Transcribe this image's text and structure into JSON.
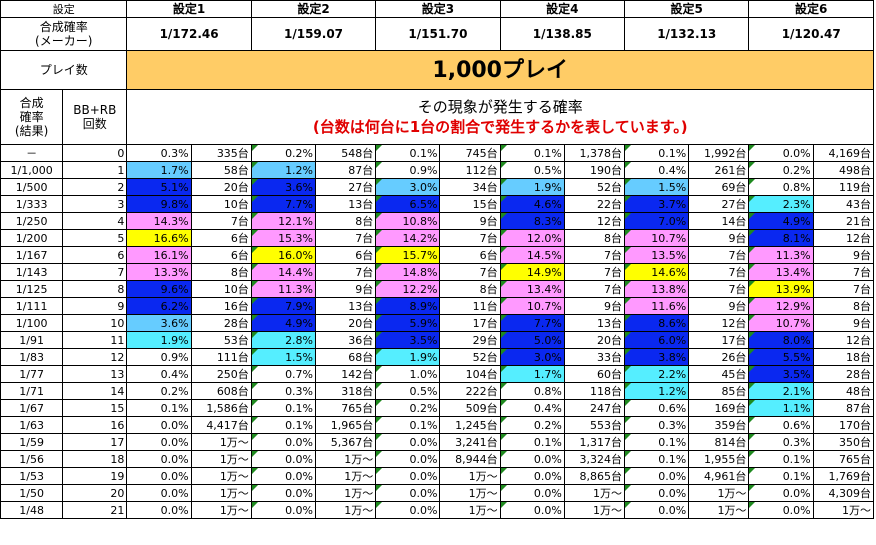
{
  "header": {
    "setting_label": "設定",
    "settings": [
      "設定1",
      "設定2",
      "設定3",
      "設定4",
      "設定5",
      "設定6"
    ],
    "odds_label_line1": "合成確率",
    "odds_label_line2": "(メーカー)",
    "odds": [
      "1/172.46",
      "1/159.07",
      "1/151.70",
      "1/138.85",
      "1/132.13",
      "1/120.47"
    ],
    "plays_label": "プレイ数",
    "plays_value": "1,000プレイ",
    "col_odds_result": [
      "合成",
      "確率",
      "(結果)"
    ],
    "col_bbrb": [
      "BB+RB",
      "回数"
    ],
    "phenomenon_title": "その現象が発生する確率",
    "phenomenon_note": "(台数は何台に1台の割合で発生するかを表しています。)"
  },
  "colors": {
    "blue": "#0a28f0",
    "light_blue": "#66ccff",
    "cyan": "#55eeff",
    "pink": "#ff99ff",
    "yellow": "#ffff00",
    "banner": "#ffcc66",
    "note_red": "#e00000"
  },
  "rows": [
    {
      "odds": "－",
      "n": "0",
      "cells": [
        [
          "0.3%",
          "335台",
          ""
        ],
        [
          "0.2%",
          "548台",
          ""
        ],
        [
          "0.1%",
          "745台",
          ""
        ],
        [
          "0.1%",
          "1,378台",
          ""
        ],
        [
          "0.1%",
          "1,992台",
          ""
        ],
        [
          "0.0%",
          "4,169台",
          ""
        ]
      ]
    },
    {
      "odds": "1/1,000",
      "n": "1",
      "cells": [
        [
          "1.7%",
          "58台",
          "light_blue"
        ],
        [
          "1.2%",
          "87台",
          "light_blue"
        ],
        [
          "0.9%",
          "112台",
          ""
        ],
        [
          "0.5%",
          "190台",
          ""
        ],
        [
          "0.4%",
          "261台",
          ""
        ],
        [
          "0.2%",
          "498台",
          ""
        ]
      ]
    },
    {
      "odds": "1/500",
      "n": "2",
      "cells": [
        [
          "5.1%",
          "20台",
          "blue"
        ],
        [
          "3.6%",
          "27台",
          "blue"
        ],
        [
          "3.0%",
          "34台",
          "light_blue"
        ],
        [
          "1.9%",
          "52台",
          "light_blue"
        ],
        [
          "1.5%",
          "69台",
          "light_blue"
        ],
        [
          "0.8%",
          "119台",
          ""
        ]
      ]
    },
    {
      "odds": "1/333",
      "n": "3",
      "cells": [
        [
          "9.8%",
          "10台",
          "blue"
        ],
        [
          "7.7%",
          "13台",
          "blue"
        ],
        [
          "6.5%",
          "15台",
          "blue"
        ],
        [
          "4.6%",
          "22台",
          "blue"
        ],
        [
          "3.7%",
          "27台",
          "blue"
        ],
        [
          "2.3%",
          "43台",
          "cyan"
        ]
      ]
    },
    {
      "odds": "1/250",
      "n": "4",
      "cells": [
        [
          "14.3%",
          "7台",
          "pink"
        ],
        [
          "12.1%",
          "8台",
          "pink"
        ],
        [
          "10.8%",
          "9台",
          "pink"
        ],
        [
          "8.3%",
          "12台",
          "blue"
        ],
        [
          "7.0%",
          "14台",
          "blue"
        ],
        [
          "4.9%",
          "21台",
          "blue"
        ]
      ]
    },
    {
      "odds": "1/200",
      "n": "5",
      "cells": [
        [
          "16.6%",
          "6台",
          "yellow"
        ],
        [
          "15.3%",
          "7台",
          "pink"
        ],
        [
          "14.2%",
          "7台",
          "pink"
        ],
        [
          "12.0%",
          "8台",
          "pink"
        ],
        [
          "10.7%",
          "9台",
          "pink"
        ],
        [
          "8.1%",
          "12台",
          "blue"
        ]
      ]
    },
    {
      "odds": "1/167",
      "n": "6",
      "cells": [
        [
          "16.1%",
          "6台",
          "pink"
        ],
        [
          "16.0%",
          "6台",
          "yellow"
        ],
        [
          "15.7%",
          "6台",
          "yellow"
        ],
        [
          "14.5%",
          "7台",
          "pink"
        ],
        [
          "13.5%",
          "7台",
          "pink"
        ],
        [
          "11.3%",
          "9台",
          "pink"
        ]
      ]
    },
    {
      "odds": "1/143",
      "n": "7",
      "cells": [
        [
          "13.3%",
          "8台",
          "pink"
        ],
        [
          "14.4%",
          "7台",
          "pink"
        ],
        [
          "14.8%",
          "7台",
          "pink"
        ],
        [
          "14.9%",
          "7台",
          "yellow"
        ],
        [
          "14.6%",
          "7台",
          "yellow"
        ],
        [
          "13.4%",
          "7台",
          "pink"
        ]
      ]
    },
    {
      "odds": "1/125",
      "n": "8",
      "cells": [
        [
          "9.6%",
          "10台",
          "blue"
        ],
        [
          "11.3%",
          "9台",
          "pink"
        ],
        [
          "12.2%",
          "8台",
          "pink"
        ],
        [
          "13.4%",
          "7台",
          "pink"
        ],
        [
          "13.8%",
          "7台",
          "pink"
        ],
        [
          "13.9%",
          "7台",
          "yellow"
        ]
      ]
    },
    {
      "odds": "1/111",
      "n": "9",
      "cells": [
        [
          "6.2%",
          "16台",
          "blue"
        ],
        [
          "7.9%",
          "13台",
          "blue"
        ],
        [
          "8.9%",
          "11台",
          "blue"
        ],
        [
          "10.7%",
          "9台",
          "pink"
        ],
        [
          "11.6%",
          "9台",
          "pink"
        ],
        [
          "12.9%",
          "8台",
          "pink"
        ]
      ]
    },
    {
      "odds": "1/100",
      "n": "10",
      "cells": [
        [
          "3.6%",
          "28台",
          "light_blue"
        ],
        [
          "4.9%",
          "20台",
          "blue"
        ],
        [
          "5.9%",
          "17台",
          "blue"
        ],
        [
          "7.7%",
          "13台",
          "blue"
        ],
        [
          "8.6%",
          "12台",
          "blue"
        ],
        [
          "10.7%",
          "9台",
          "pink"
        ]
      ]
    },
    {
      "odds": "1/91",
      "n": "11",
      "cells": [
        [
          "1.9%",
          "53台",
          "cyan"
        ],
        [
          "2.8%",
          "36台",
          "cyan"
        ],
        [
          "3.5%",
          "29台",
          "blue"
        ],
        [
          "5.0%",
          "20台",
          "blue"
        ],
        [
          "6.0%",
          "17台",
          "blue"
        ],
        [
          "8.0%",
          "12台",
          "blue"
        ]
      ]
    },
    {
      "odds": "1/83",
      "n": "12",
      "cells": [
        [
          "0.9%",
          "111台",
          ""
        ],
        [
          "1.5%",
          "68台",
          "cyan"
        ],
        [
          "1.9%",
          "52台",
          "cyan"
        ],
        [
          "3.0%",
          "33台",
          "blue"
        ],
        [
          "3.8%",
          "26台",
          "blue"
        ],
        [
          "5.5%",
          "18台",
          "blue"
        ]
      ]
    },
    {
      "odds": "1/77",
      "n": "13",
      "cells": [
        [
          "0.4%",
          "250台",
          ""
        ],
        [
          "0.7%",
          "142台",
          ""
        ],
        [
          "1.0%",
          "104台",
          ""
        ],
        [
          "1.7%",
          "60台",
          "cyan"
        ],
        [
          "2.2%",
          "45台",
          "cyan"
        ],
        [
          "3.5%",
          "28台",
          "blue"
        ]
      ]
    },
    {
      "odds": "1/71",
      "n": "14",
      "cells": [
        [
          "0.2%",
          "608台",
          ""
        ],
        [
          "0.3%",
          "318台",
          ""
        ],
        [
          "0.5%",
          "222台",
          ""
        ],
        [
          "0.8%",
          "118台",
          ""
        ],
        [
          "1.2%",
          "85台",
          "cyan"
        ],
        [
          "2.1%",
          "48台",
          "cyan"
        ]
      ]
    },
    {
      "odds": "1/67",
      "n": "15",
      "cells": [
        [
          "0.1%",
          "1,586台",
          ""
        ],
        [
          "0.1%",
          "765台",
          ""
        ],
        [
          "0.2%",
          "509台",
          ""
        ],
        [
          "0.4%",
          "247台",
          ""
        ],
        [
          "0.6%",
          "169台",
          ""
        ],
        [
          "1.1%",
          "87台",
          "cyan"
        ]
      ]
    },
    {
      "odds": "1/63",
      "n": "16",
      "cells": [
        [
          "0.0%",
          "4,417台",
          ""
        ],
        [
          "0.1%",
          "1,965台",
          ""
        ],
        [
          "0.1%",
          "1,245台",
          ""
        ],
        [
          "0.2%",
          "553台",
          ""
        ],
        [
          "0.3%",
          "359台",
          ""
        ],
        [
          "0.6%",
          "170台",
          ""
        ]
      ]
    },
    {
      "odds": "1/59",
      "n": "17",
      "cells": [
        [
          "0.0%",
          "1万～",
          ""
        ],
        [
          "0.0%",
          "5,367台",
          ""
        ],
        [
          "0.0%",
          "3,241台",
          ""
        ],
        [
          "0.1%",
          "1,317台",
          ""
        ],
        [
          "0.1%",
          "814台",
          ""
        ],
        [
          "0.3%",
          "350台",
          ""
        ]
      ]
    },
    {
      "odds": "1/56",
      "n": "18",
      "cells": [
        [
          "0.0%",
          "1万～",
          ""
        ],
        [
          "0.0%",
          "1万～",
          ""
        ],
        [
          "0.0%",
          "8,944台",
          ""
        ],
        [
          "0.0%",
          "3,324台",
          ""
        ],
        [
          "0.1%",
          "1,955台",
          ""
        ],
        [
          "0.1%",
          "765台",
          ""
        ]
      ]
    },
    {
      "odds": "1/53",
      "n": "19",
      "cells": [
        [
          "0.0%",
          "1万～",
          ""
        ],
        [
          "0.0%",
          "1万～",
          ""
        ],
        [
          "0.0%",
          "1万～",
          ""
        ],
        [
          "0.0%",
          "8,865台",
          ""
        ],
        [
          "0.0%",
          "4,961台",
          ""
        ],
        [
          "0.1%",
          "1,769台",
          ""
        ]
      ]
    },
    {
      "odds": "1/50",
      "n": "20",
      "cells": [
        [
          "0.0%",
          "1万～",
          ""
        ],
        [
          "0.0%",
          "1万～",
          ""
        ],
        [
          "0.0%",
          "1万～",
          ""
        ],
        [
          "0.0%",
          "1万～",
          ""
        ],
        [
          "0.0%",
          "1万～",
          ""
        ],
        [
          "0.0%",
          "4,309台",
          ""
        ]
      ]
    },
    {
      "odds": "1/48",
      "n": "21",
      "cells": [
        [
          "0.0%",
          "1万～",
          ""
        ],
        [
          "0.0%",
          "1万～",
          ""
        ],
        [
          "0.0%",
          "1万～",
          ""
        ],
        [
          "0.0%",
          "1万～",
          ""
        ],
        [
          "0.0%",
          "1万～",
          ""
        ],
        [
          "0.0%",
          "1万～",
          ""
        ]
      ]
    }
  ]
}
